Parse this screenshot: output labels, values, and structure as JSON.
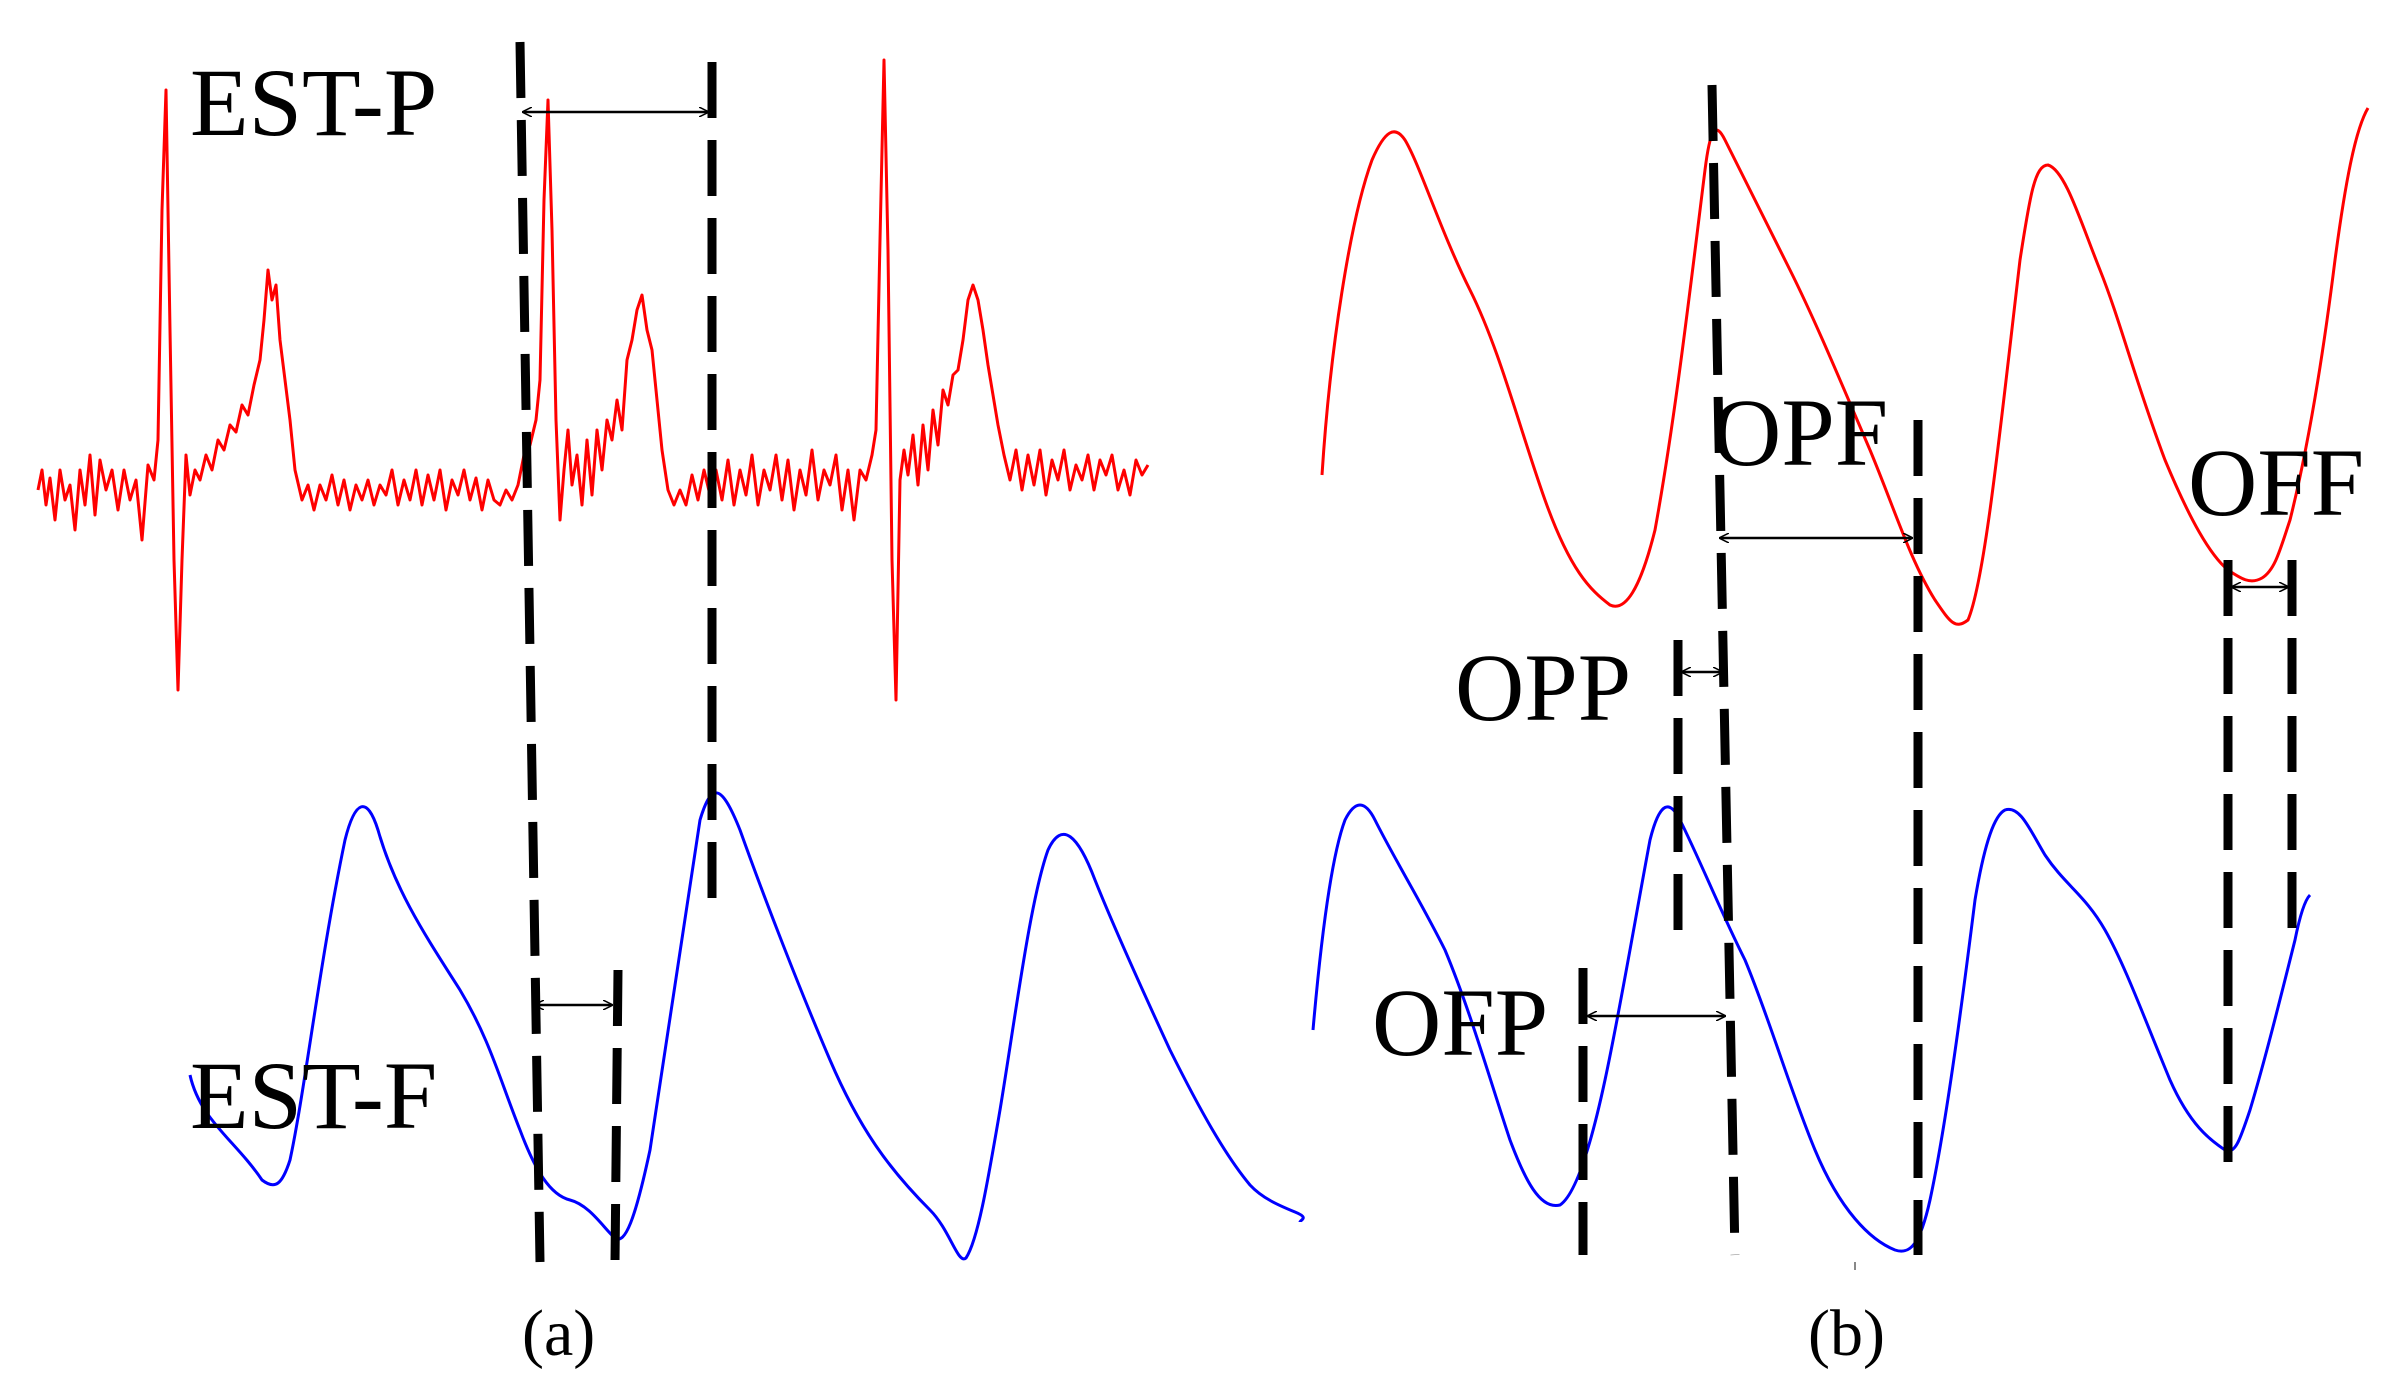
{
  "colors": {
    "ecg": "#ff0000",
    "ppg": "#0000ff",
    "markers": "#000000"
  },
  "panel_a": {
    "caption": "(a)",
    "label_top": "EST-P",
    "label_bottom": "EST-F"
  },
  "panel_b": {
    "caption": "(b)",
    "labels": {
      "opf": "OPF",
      "off": "OFF",
      "opp": "OPP",
      "ofp": "OFP"
    }
  }
}
